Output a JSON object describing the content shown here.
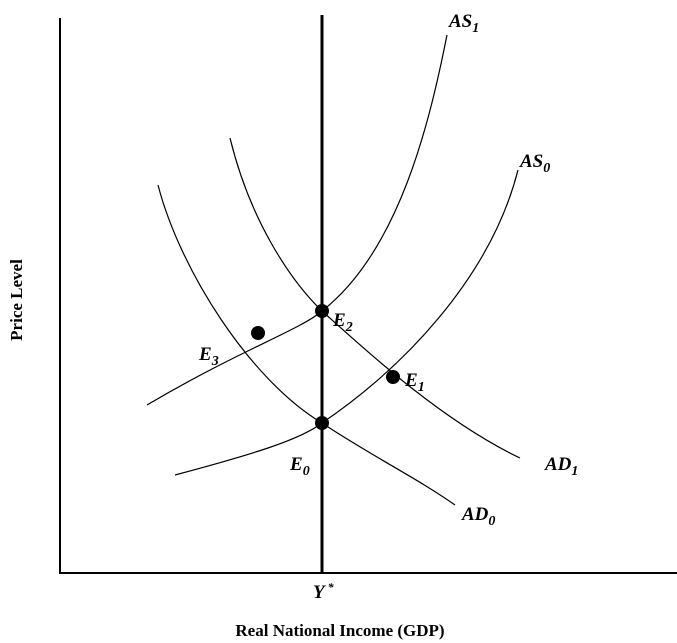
{
  "axes": {
    "x_label": "Real National Income (GDP)",
    "y_label": "Price Level",
    "x_marker": {
      "main": "Y",
      "sup": "*"
    }
  },
  "curves": [
    {
      "main": "AS",
      "sub": "1"
    },
    {
      "main": "AS",
      "sub": "0"
    },
    {
      "main": "AD",
      "sub": "1"
    },
    {
      "main": "AD",
      "sub": "0"
    }
  ],
  "points": [
    {
      "main": "E",
      "sub": "0"
    },
    {
      "main": "E",
      "sub": "1"
    },
    {
      "main": "E",
      "sub": "2"
    },
    {
      "main": "E",
      "sub": "3"
    }
  ]
}
